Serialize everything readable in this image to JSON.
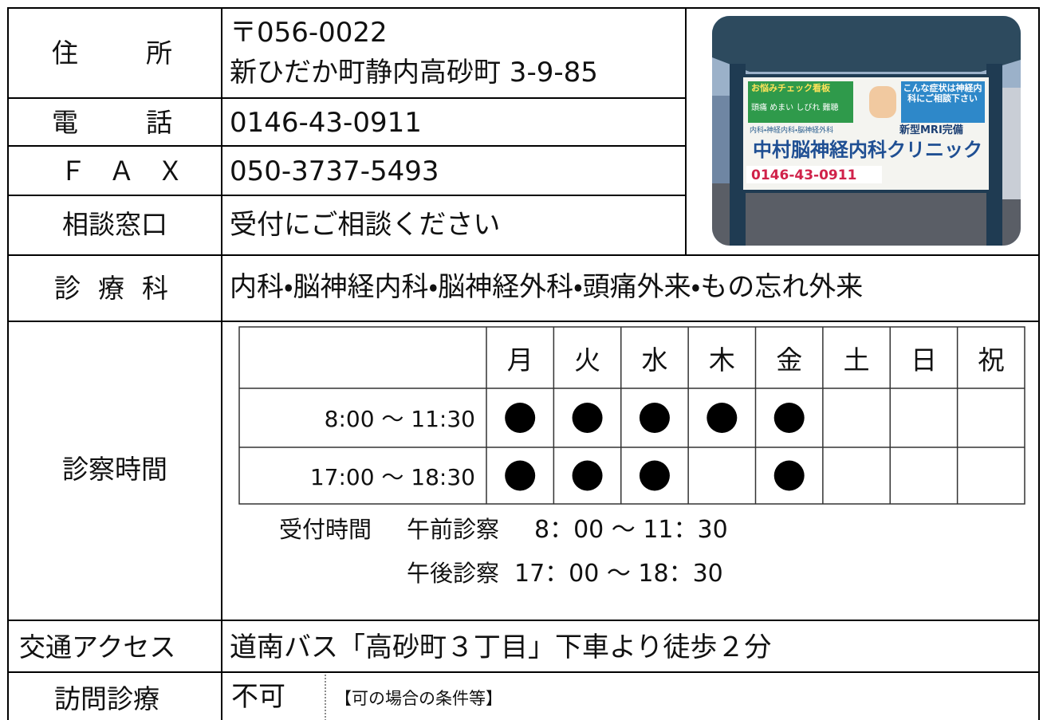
{
  "address": {
    "label": "住所",
    "postal": "〒056-0022",
    "street": "新ひだか町静内高砂町 3-9-85"
  },
  "phone": {
    "label": "電話",
    "value": "0146-43-0911"
  },
  "fax": {
    "label": "ＦＡＸ",
    "value": "050-3737-5493"
  },
  "consult": {
    "label": "相談窓口",
    "value": "受付にご相談ください"
  },
  "departments": {
    "label": "診療科",
    "value": "内科・脳神経内科・脳神経外科・頭痛外来・もの忘れ外来"
  },
  "hours": {
    "label": "診察時間",
    "days": [
      "月",
      "火",
      "水",
      "木",
      "金",
      "土",
      "日",
      "祝"
    ],
    "rows": [
      {
        "time": "8:00 ～ 11:30",
        "open": [
          true,
          true,
          true,
          true,
          true,
          false,
          false,
          false
        ]
      },
      {
        "time": "17:00 ～ 18:30",
        "open": [
          true,
          true,
          true,
          false,
          true,
          false,
          false,
          false
        ]
      }
    ],
    "reception": {
      "label": "受付時間",
      "am_label": "午前診察",
      "am": "8：00 ～ 11：30",
      "pm_label": "午後診察",
      "pm": "17：00 ～ 18：30"
    }
  },
  "access": {
    "label": "交通アクセス",
    "value": "道南バス「高砂町３丁目」下車より徒歩２分"
  },
  "home_visit": {
    "label": "訪問診療",
    "value": "不可",
    "conditions": "【可の場合の条件等】"
  },
  "photo": {
    "check": "お悩みチェック看板",
    "symptoms": "頭痛 めまい しびれ 難聴",
    "message": "こんな症状は神経内科にご相談下さい",
    "departments": "内科・神経内科・脳神経外科",
    "mri": "新型MRI完備",
    "clinic": "中村脳神経内科クリニック",
    "phone": "0146-43-0911"
  }
}
